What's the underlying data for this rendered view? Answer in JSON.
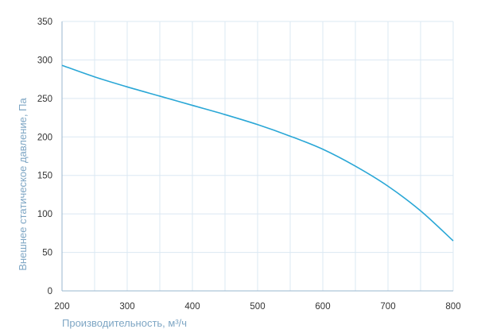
{
  "chart_data": {
    "type": "line",
    "title": "",
    "xlabel": "Производительность, м³/ч",
    "ylabel": "Внешнее статическое давление, Па",
    "xlim": [
      200,
      800
    ],
    "ylim": [
      0,
      350
    ],
    "xticks": [
      200,
      300,
      400,
      500,
      600,
      700,
      800
    ],
    "yticks": [
      0,
      50,
      100,
      150,
      200,
      250,
      300,
      350
    ],
    "grid": true,
    "colors": {
      "line": "#2aa7d6",
      "grid": "#dbe8f3",
      "axis": "#9ab7cf"
    },
    "series": [
      {
        "x": [
          200,
          250,
          300,
          350,
          400,
          450,
          500,
          550,
          600,
          650,
          700,
          750,
          800
        ],
        "y": [
          293,
          278,
          265,
          253,
          241,
          229,
          216,
          201,
          184,
          162,
          136,
          104,
          65
        ]
      }
    ]
  }
}
